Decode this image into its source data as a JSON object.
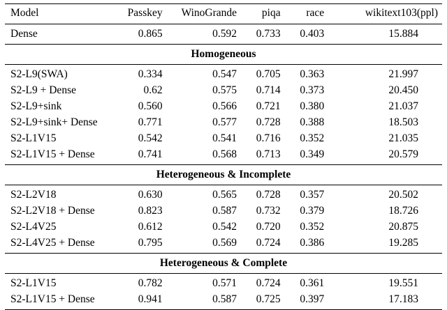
{
  "table": {
    "columns": [
      "Model",
      "Passkey",
      "WinoGrande",
      "piqa",
      "race",
      "wikitext103(ppl)"
    ],
    "sections": [
      {
        "header": null,
        "rows": [
          [
            "Dense",
            "0.865",
            "0.592",
            "0.733",
            "0.403",
            "15.884"
          ]
        ]
      },
      {
        "header": "Homogeneous",
        "rows": [
          [
            "S2-L9(SWA)",
            "0.334",
            "0.547",
            "0.705",
            "0.363",
            "21.997"
          ],
          [
            "S2-L9 + Dense",
            "0.62",
            "0.575",
            "0.714",
            "0.373",
            "20.450"
          ],
          [
            "S2-L9+sink",
            "0.560",
            "0.566",
            "0.721",
            "0.380",
            "21.037"
          ],
          [
            "S2-L9+sink+ Dense",
            "0.771",
            "0.577",
            "0.728",
            "0.388",
            "18.503"
          ],
          [
            "S2-L1V15",
            "0.542",
            "0.541",
            "0.716",
            "0.352",
            "21.035"
          ],
          [
            "S2-L1V15 + Dense",
            "0.741",
            "0.568",
            "0.713",
            "0.349",
            "20.579"
          ]
        ]
      },
      {
        "header": "Heterogeneous & Incomplete",
        "rows": [
          [
            "S2-L2V18",
            "0.630",
            "0.565",
            "0.728",
            "0.357",
            "20.502"
          ],
          [
            "S2-L2V18 + Dense",
            "0.823",
            "0.587",
            "0.732",
            "0.379",
            "18.726"
          ],
          [
            "S2-L4V25",
            "0.612",
            "0.542",
            "0.720",
            "0.352",
            "20.875"
          ],
          [
            "S2-L4V25 + Dense",
            "0.795",
            "0.569",
            "0.724",
            "0.386",
            "19.285"
          ]
        ]
      },
      {
        "header": "Heterogeneous & Complete",
        "rows": [
          [
            "S2-L1V15",
            "0.782",
            "0.571",
            "0.724",
            "0.361",
            "19.551"
          ],
          [
            "S2-L1V15 + Dense",
            "0.941",
            "0.587",
            "0.725",
            "0.397",
            "17.183"
          ]
        ]
      }
    ]
  }
}
